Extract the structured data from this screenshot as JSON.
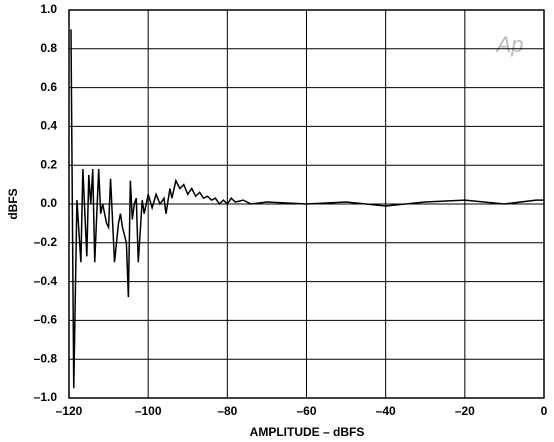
{
  "chart_data": {
    "type": "line",
    "x_label": "AMPLITUDE – dBFS",
    "y_label": "dBFS",
    "annotation": "Ap",
    "grid": true,
    "xlim": [
      -120,
      0
    ],
    "ylim": [
      -1,
      1
    ],
    "xticks": [
      {
        "value": -120,
        "label": "–120"
      },
      {
        "value": -100,
        "label": "–100"
      },
      {
        "value": -80,
        "label": "–80"
      },
      {
        "value": -60,
        "label": "–60"
      },
      {
        "value": -40,
        "label": "–40"
      },
      {
        "value": -20,
        "label": "–20"
      },
      0
    ],
    "yticks": [
      {
        "value": -1,
        "label": "–1.0"
      },
      {
        "value": -0.8,
        "label": "–0.8"
      },
      {
        "value": -0.6,
        "label": "–0.6"
      },
      {
        "value": -0.4,
        "label": "–0.4"
      },
      {
        "value": -0.2,
        "label": "–0.2"
      },
      {
        "value": 0,
        "label": "0.0"
      },
      0.2,
      0.4,
      0.6,
      0.8,
      {
        "value": 1,
        "label": "1.0"
      }
    ],
    "x": [
      -119.5,
      -118.8,
      -118,
      -117,
      -116.5,
      -115.5,
      -115,
      -114.5,
      -114,
      -113.5,
      -112.5,
      -112,
      -111.5,
      -110.5,
      -110,
      -109.5,
      -108.5,
      -107.5,
      -107,
      -106.5,
      -105.5,
      -105,
      -104.5,
      -104,
      -103.5,
      -103,
      -102.5,
      -101.5,
      -101,
      -100,
      -99,
      -98,
      -97,
      -96,
      -95.5,
      -94.5,
      -94,
      -93,
      -92,
      -91,
      -90,
      -89,
      -88,
      -87,
      -86,
      -85,
      -84,
      -83,
      -82,
      -81,
      -80,
      -79,
      -78,
      -76,
      -74,
      -70,
      -60,
      -50,
      -40,
      -35,
      -30,
      -20,
      -10,
      -2,
      0
    ],
    "series": [
      {
        "color": "#000000",
        "values": [
          0.9,
          -0.95,
          0.02,
          -0.3,
          0.18,
          -0.27,
          0.15,
          0.0,
          0.18,
          -0.3,
          0.18,
          -0.05,
          0.0,
          -0.1,
          -0.12,
          0.13,
          -0.3,
          -0.1,
          -0.05,
          -0.12,
          -0.2,
          -0.48,
          0.12,
          -0.08,
          0.0,
          0.03,
          -0.3,
          0.02,
          -0.05,
          0.05,
          -0.02,
          0.05,
          0.0,
          0.03,
          -0.05,
          0.08,
          0.03,
          0.12,
          0.08,
          0.1,
          0.05,
          0.08,
          0.04,
          0.06,
          0.03,
          0.04,
          0.02,
          0.03,
          0.0,
          0.02,
          0.0,
          0.03,
          0.01,
          0.02,
          0.0,
          0.01,
          0.0,
          0.01,
          -0.01,
          0.0,
          0.01,
          0.02,
          0.0,
          0.02,
          0.02
        ]
      }
    ]
  }
}
